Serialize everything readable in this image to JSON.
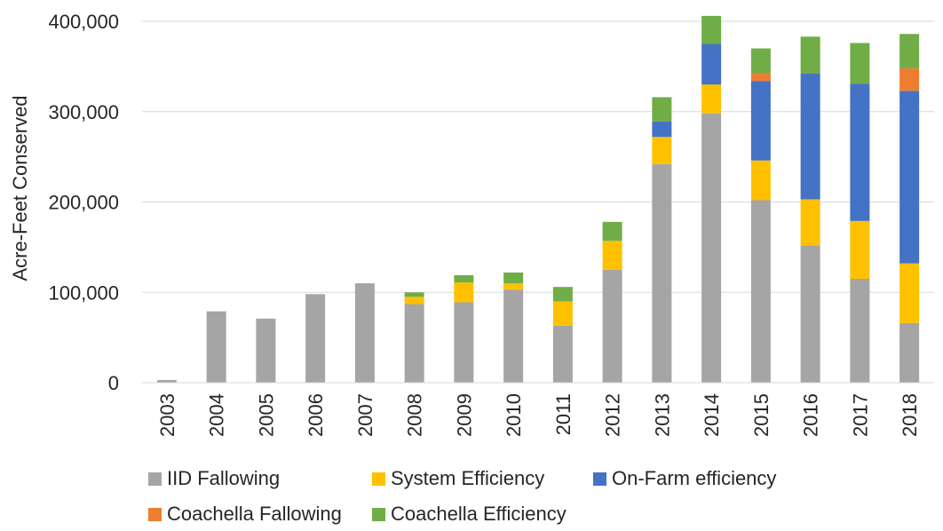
{
  "chart_data": {
    "type": "bar",
    "stacked": true,
    "title": "",
    "xlabel": "",
    "ylabel": "Acre-Feet Conserved",
    "ylim": [
      0,
      400000
    ],
    "yticks": [
      0,
      100000,
      200000,
      300000,
      400000
    ],
    "ytick_labels": [
      "0",
      "100,000",
      "200,000",
      "300,000",
      "400,000"
    ],
    "grid": true,
    "legend_position": "bottom",
    "categories": [
      "2003",
      "2004",
      "2005",
      "2006",
      "2007",
      "2008",
      "2009",
      "2010",
      "2011",
      "2012",
      "2013",
      "2014",
      "2015",
      "2016",
      "2017",
      "2018"
    ],
    "series": [
      {
        "name": "IID Fallowing",
        "color": "#a5a5a5",
        "values": [
          3000,
          79000,
          71000,
          98000,
          110000,
          87000,
          89000,
          103000,
          63000,
          125000,
          242000,
          298000,
          202000,
          152000,
          115000,
          66000
        ]
      },
      {
        "name": "System Efficiency",
        "color": "#ffc000",
        "values": [
          0,
          0,
          0,
          0,
          0,
          8000,
          22000,
          7000,
          27000,
          32000,
          30000,
          32000,
          44000,
          51000,
          64000,
          66000
        ]
      },
      {
        "name": "On-Farm efficiency",
        "color": "#4472c4",
        "values": [
          0,
          0,
          0,
          0,
          0,
          0,
          0,
          0,
          0,
          0,
          17000,
          45000,
          88000,
          139000,
          152000,
          191000
        ]
      },
      {
        "name": "Coachella Fallowing",
        "color": "#ed7d31",
        "values": [
          0,
          0,
          0,
          0,
          0,
          0,
          0,
          0,
          0,
          0,
          0,
          0,
          9000,
          0,
          0,
          25000
        ]
      },
      {
        "name": "Coachella Efficiency",
        "color": "#70ad47",
        "values": [
          0,
          0,
          0,
          0,
          0,
          5000,
          8000,
          12000,
          16000,
          21000,
          27000,
          31000,
          27000,
          41000,
          45000,
          38000
        ]
      }
    ]
  }
}
